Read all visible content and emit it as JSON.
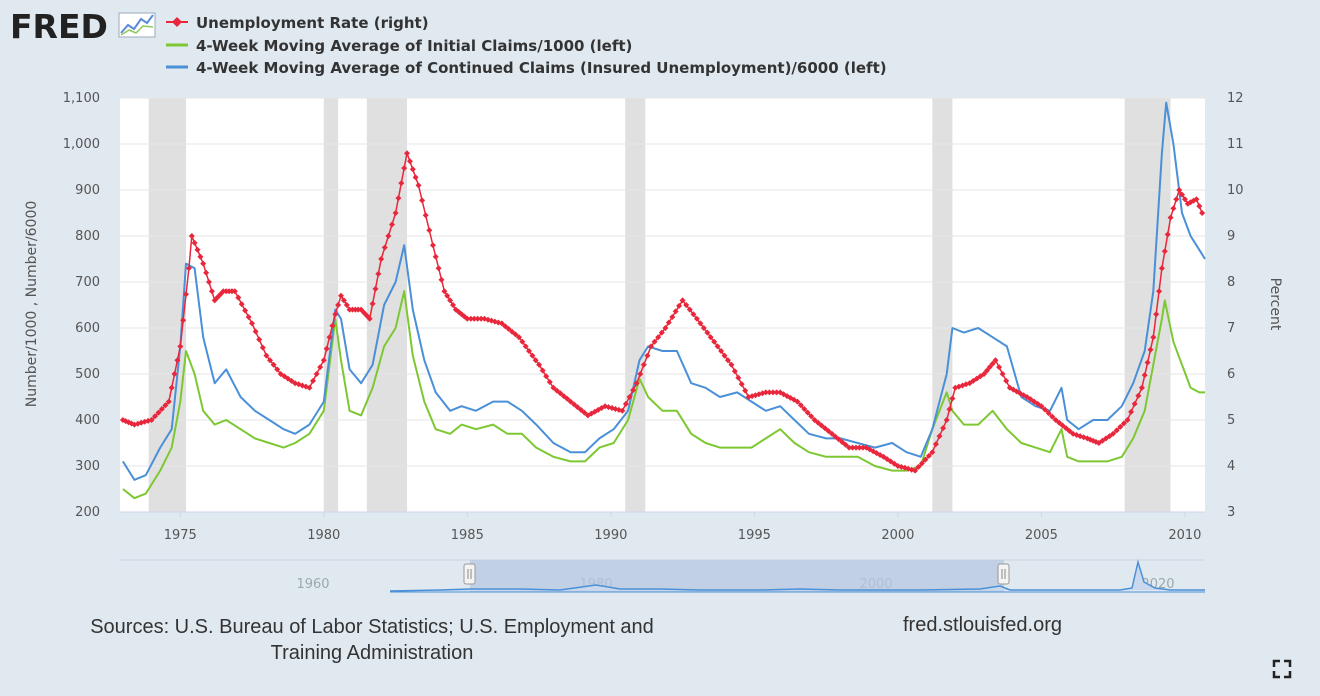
{
  "brand": {
    "logo_text": "FRED"
  },
  "legend": [
    {
      "label": "Unemployment Rate (right)",
      "color": "#e8273c",
      "marker": "diamond"
    },
    {
      "label": "4-Week Moving Average of Initial Claims/1000 (left)",
      "color": "#7dc832",
      "marker": "none"
    },
    {
      "label": "4-Week Moving Average of Continued Claims (Insured Unemployment)/6000 (left)",
      "color": "#4a90d9",
      "marker": "none"
    }
  ],
  "footer": {
    "sources": "Sources: U.S. Bureau of Labor Statistics; U.S. Employment and Training Administration",
    "site": "fred.stlouisfed.org"
  },
  "colors": {
    "background": "#e1e9f0",
    "plot_background": "#ffffff",
    "recession": "#e0e0e0",
    "navigator_fill": "#b6c7e2"
  },
  "icons": {
    "fullscreen": "fullscreen-icon"
  },
  "chart_data": {
    "type": "line",
    "ylabel": "Number/1000 , Number/6000",
    "y2label": "Percent",
    "xlim": [
      1972.9,
      2010.7
    ],
    "ylim": [
      200,
      1100
    ],
    "y2lim": [
      3,
      12
    ],
    "xticks": [
      "1975",
      "1980",
      "1985",
      "1990",
      "1995",
      "2000",
      "2005",
      "2010"
    ],
    "yticks": [
      "200",
      "300",
      "400",
      "500",
      "600",
      "700",
      "800",
      "900",
      "1,000",
      "1,100"
    ],
    "y2ticks": [
      "3",
      "4",
      "5",
      "6",
      "7",
      "8",
      "9",
      "10",
      "11",
      "12"
    ],
    "grid": true,
    "legend_position": "top-left",
    "recessions": [
      [
        1973.9,
        1975.2
      ],
      [
        1980.0,
        1980.5
      ],
      [
        1981.5,
        1982.9
      ],
      [
        1990.5,
        1991.2
      ],
      [
        2001.2,
        2001.9
      ],
      [
        2007.9,
        2009.5
      ]
    ],
    "series": [
      {
        "name": "Unemployment Rate (right)",
        "axis": "right",
        "color": "#e8273c",
        "points": [
          [
            1973.0,
            5.0
          ],
          [
            1973.4,
            4.9
          ],
          [
            1974.0,
            5.0
          ],
          [
            1974.6,
            5.4
          ],
          [
            1975.0,
            6.6
          ],
          [
            1975.3,
            8.3
          ],
          [
            1975.4,
            9.0
          ],
          [
            1975.8,
            8.4
          ],
          [
            1976.2,
            7.6
          ],
          [
            1976.5,
            7.8
          ],
          [
            1976.9,
            7.8
          ],
          [
            1977.5,
            7.1
          ],
          [
            1978.0,
            6.4
          ],
          [
            1978.5,
            6.0
          ],
          [
            1979.0,
            5.8
          ],
          [
            1979.5,
            5.7
          ],
          [
            1980.0,
            6.3
          ],
          [
            1980.4,
            7.3
          ],
          [
            1980.6,
            7.7
          ],
          [
            1980.9,
            7.4
          ],
          [
            1981.3,
            7.4
          ],
          [
            1981.6,
            7.2
          ],
          [
            1982.0,
            8.5
          ],
          [
            1982.5,
            9.5
          ],
          [
            1982.9,
            10.8
          ],
          [
            1983.3,
            10.1
          ],
          [
            1983.8,
            8.8
          ],
          [
            1984.2,
            7.8
          ],
          [
            1984.6,
            7.4
          ],
          [
            1985.0,
            7.2
          ],
          [
            1985.6,
            7.2
          ],
          [
            1986.2,
            7.1
          ],
          [
            1986.8,
            6.8
          ],
          [
            1987.5,
            6.2
          ],
          [
            1988.0,
            5.7
          ],
          [
            1988.6,
            5.4
          ],
          [
            1989.2,
            5.1
          ],
          [
            1989.8,
            5.3
          ],
          [
            1990.4,
            5.2
          ],
          [
            1990.9,
            5.8
          ],
          [
            1991.4,
            6.6
          ],
          [
            1991.9,
            7.0
          ],
          [
            1992.5,
            7.6
          ],
          [
            1993.0,
            7.2
          ],
          [
            1993.6,
            6.7
          ],
          [
            1994.2,
            6.2
          ],
          [
            1994.8,
            5.5
          ],
          [
            1995.4,
            5.6
          ],
          [
            1995.9,
            5.6
          ],
          [
            1996.5,
            5.4
          ],
          [
            1997.1,
            5.0
          ],
          [
            1997.7,
            4.7
          ],
          [
            1998.3,
            4.4
          ],
          [
            1998.9,
            4.4
          ],
          [
            1999.5,
            4.2
          ],
          [
            2000.0,
            4.0
          ],
          [
            2000.6,
            3.9
          ],
          [
            2001.2,
            4.3
          ],
          [
            2001.7,
            5.0
          ],
          [
            2002.0,
            5.7
          ],
          [
            2002.5,
            5.8
          ],
          [
            2003.0,
            6.0
          ],
          [
            2003.4,
            6.3
          ],
          [
            2003.9,
            5.7
          ],
          [
            2004.5,
            5.5
          ],
          [
            2005.0,
            5.3
          ],
          [
            2005.5,
            5.0
          ],
          [
            2006.1,
            4.7
          ],
          [
            2006.6,
            4.6
          ],
          [
            2007.0,
            4.5
          ],
          [
            2007.5,
            4.7
          ],
          [
            2008.0,
            5.0
          ],
          [
            2008.5,
            5.7
          ],
          [
            2008.9,
            6.8
          ],
          [
            2009.2,
            8.3
          ],
          [
            2009.5,
            9.4
          ],
          [
            2009.8,
            10.0
          ],
          [
            2010.1,
            9.7
          ],
          [
            2010.4,
            9.8
          ],
          [
            2010.6,
            9.5
          ]
        ]
      },
      {
        "name": "4-Week Moving Average of Initial Claims/1000 (left)",
        "axis": "left",
        "color": "#7dc832",
        "points": [
          [
            1973.0,
            250
          ],
          [
            1973.4,
            230
          ],
          [
            1973.8,
            240
          ],
          [
            1974.3,
            290
          ],
          [
            1974.7,
            340
          ],
          [
            1975.0,
            440
          ],
          [
            1975.2,
            550
          ],
          [
            1975.5,
            500
          ],
          [
            1975.8,
            420
          ],
          [
            1976.2,
            390
          ],
          [
            1976.6,
            400
          ],
          [
            1977.1,
            380
          ],
          [
            1977.6,
            360
          ],
          [
            1978.1,
            350
          ],
          [
            1978.6,
            340
          ],
          [
            1979.0,
            350
          ],
          [
            1979.5,
            370
          ],
          [
            1980.0,
            420
          ],
          [
            1980.4,
            620
          ],
          [
            1980.6,
            530
          ],
          [
            1980.9,
            420
          ],
          [
            1981.3,
            410
          ],
          [
            1981.7,
            470
          ],
          [
            1982.1,
            560
          ],
          [
            1982.5,
            600
          ],
          [
            1982.8,
            680
          ],
          [
            1983.1,
            540
          ],
          [
            1983.5,
            440
          ],
          [
            1983.9,
            380
          ],
          [
            1984.4,
            370
          ],
          [
            1984.8,
            390
          ],
          [
            1985.3,
            380
          ],
          [
            1985.9,
            390
          ],
          [
            1986.4,
            370
          ],
          [
            1986.9,
            370
          ],
          [
            1987.4,
            340
          ],
          [
            1988.0,
            320
          ],
          [
            1988.6,
            310
          ],
          [
            1989.1,
            310
          ],
          [
            1989.6,
            340
          ],
          [
            1990.1,
            350
          ],
          [
            1990.6,
            400
          ],
          [
            1991.0,
            490
          ],
          [
            1991.3,
            450
          ],
          [
            1991.8,
            420
          ],
          [
            1992.3,
            420
          ],
          [
            1992.8,
            370
          ],
          [
            1993.3,
            350
          ],
          [
            1993.8,
            340
          ],
          [
            1994.4,
            340
          ],
          [
            1994.9,
            340
          ],
          [
            1995.4,
            360
          ],
          [
            1995.9,
            380
          ],
          [
            1996.4,
            350
          ],
          [
            1996.9,
            330
          ],
          [
            1997.5,
            320
          ],
          [
            1998.0,
            320
          ],
          [
            1998.6,
            320
          ],
          [
            1999.2,
            300
          ],
          [
            1999.8,
            290
          ],
          [
            2000.3,
            290
          ],
          [
            2000.8,
            300
          ],
          [
            2001.2,
            380
          ],
          [
            2001.7,
            460
          ],
          [
            2001.9,
            420
          ],
          [
            2002.3,
            390
          ],
          [
            2002.8,
            390
          ],
          [
            2003.3,
            420
          ],
          [
            2003.8,
            380
          ],
          [
            2004.3,
            350
          ],
          [
            2004.8,
            340
          ],
          [
            2005.3,
            330
          ],
          [
            2005.7,
            380
          ],
          [
            2005.9,
            320
          ],
          [
            2006.3,
            310
          ],
          [
            2006.8,
            310
          ],
          [
            2007.3,
            310
          ],
          [
            2007.8,
            320
          ],
          [
            2008.2,
            360
          ],
          [
            2008.6,
            420
          ],
          [
            2008.9,
            520
          ],
          [
            2009.2,
            620
          ],
          [
            2009.3,
            660
          ],
          [
            2009.6,
            570
          ],
          [
            2009.9,
            520
          ],
          [
            2010.2,
            470
          ],
          [
            2010.5,
            460
          ],
          [
            2010.7,
            460
          ]
        ]
      },
      {
        "name": "4-Week Moving Average of Continued Claims (Insured Unemployment)/6000 (left)",
        "axis": "left",
        "color": "#4a90d9",
        "points": [
          [
            1973.0,
            310
          ],
          [
            1973.4,
            270
          ],
          [
            1973.8,
            280
          ],
          [
            1974.3,
            340
          ],
          [
            1974.7,
            380
          ],
          [
            1975.0,
            560
          ],
          [
            1975.2,
            740
          ],
          [
            1975.5,
            730
          ],
          [
            1975.8,
            580
          ],
          [
            1976.2,
            480
          ],
          [
            1976.6,
            510
          ],
          [
            1977.1,
            450
          ],
          [
            1977.6,
            420
          ],
          [
            1978.1,
            400
          ],
          [
            1978.6,
            380
          ],
          [
            1979.0,
            370
          ],
          [
            1979.5,
            390
          ],
          [
            1980.0,
            440
          ],
          [
            1980.4,
            640
          ],
          [
            1980.6,
            620
          ],
          [
            1980.9,
            510
          ],
          [
            1981.3,
            480
          ],
          [
            1981.7,
            520
          ],
          [
            1982.1,
            650
          ],
          [
            1982.5,
            700
          ],
          [
            1982.8,
            780
          ],
          [
            1983.1,
            640
          ],
          [
            1983.5,
            530
          ],
          [
            1983.9,
            460
          ],
          [
            1984.4,
            420
          ],
          [
            1984.8,
            430
          ],
          [
            1985.3,
            420
          ],
          [
            1985.9,
            440
          ],
          [
            1986.4,
            440
          ],
          [
            1986.9,
            420
          ],
          [
            1987.4,
            390
          ],
          [
            1988.0,
            350
          ],
          [
            1988.6,
            330
          ],
          [
            1989.1,
            330
          ],
          [
            1989.6,
            360
          ],
          [
            1990.1,
            380
          ],
          [
            1990.6,
            420
          ],
          [
            1991.0,
            530
          ],
          [
            1991.3,
            560
          ],
          [
            1991.8,
            550
          ],
          [
            1992.3,
            550
          ],
          [
            1992.8,
            480
          ],
          [
            1993.3,
            470
          ],
          [
            1993.8,
            450
          ],
          [
            1994.4,
            460
          ],
          [
            1994.9,
            440
          ],
          [
            1995.4,
            420
          ],
          [
            1995.9,
            430
          ],
          [
            1996.4,
            400
          ],
          [
            1996.9,
            370
          ],
          [
            1997.5,
            360
          ],
          [
            1998.0,
            360
          ],
          [
            1998.6,
            350
          ],
          [
            1999.2,
            340
          ],
          [
            1999.8,
            350
          ],
          [
            2000.3,
            330
          ],
          [
            2000.8,
            320
          ],
          [
            2001.2,
            380
          ],
          [
            2001.7,
            500
          ],
          [
            2001.9,
            600
          ],
          [
            2002.3,
            590
          ],
          [
            2002.8,
            600
          ],
          [
            2003.3,
            580
          ],
          [
            2003.8,
            560
          ],
          [
            2004.3,
            450
          ],
          [
            2004.8,
            430
          ],
          [
            2005.3,
            420
          ],
          [
            2005.7,
            470
          ],
          [
            2005.9,
            400
          ],
          [
            2006.3,
            380
          ],
          [
            2006.8,
            400
          ],
          [
            2007.3,
            400
          ],
          [
            2007.8,
            430
          ],
          [
            2008.2,
            480
          ],
          [
            2008.6,
            550
          ],
          [
            2008.9,
            680
          ],
          [
            2009.2,
            980
          ],
          [
            2009.35,
            1090
          ],
          [
            2009.6,
            1000
          ],
          [
            2009.9,
            850
          ],
          [
            2010.2,
            800
          ],
          [
            2010.5,
            770
          ],
          [
            2010.7,
            750
          ]
        ]
      }
    ]
  }
}
